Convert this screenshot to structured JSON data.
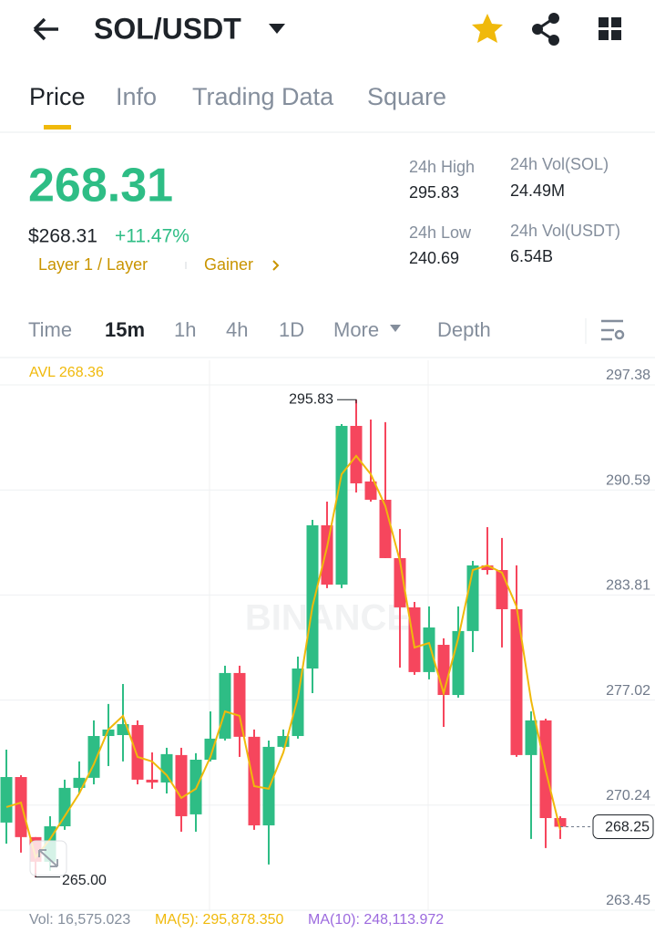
{
  "header": {
    "title": "SOL/USDT"
  },
  "tabs": [
    "Price",
    "Info",
    "Trading Data",
    "Square"
  ],
  "ticker": {
    "price": "268.31",
    "usd_price": "$268.31",
    "change": "+11.47%",
    "tags": [
      "Layer 1 / Layer",
      "Gainer"
    ],
    "stats": [
      {
        "label": "24h High",
        "value": "295.83"
      },
      {
        "label": "24h Vol(SOL)",
        "value": "24.49M"
      },
      {
        "label": "24h Low",
        "value": "240.69"
      },
      {
        "label": "24h Vol(USDT)",
        "value": "6.54B"
      }
    ]
  },
  "intervals": [
    "Time",
    "15m",
    "1h",
    "4h",
    "1D",
    "More",
    "Depth"
  ],
  "chart_data": {
    "type": "candlestick",
    "watermark": "BINANCE",
    "avl_label": "AVL 268.36",
    "up_color": "#2ebd85",
    "down_color": "#f6465d",
    "ma_color": "#f0b90b",
    "ylim": [
      262.86,
      298.38
    ],
    "yticks": [
      297.38,
      290.59,
      283.81,
      277.02,
      270.24,
      263.45
    ],
    "open": [
      268.52,
      271.46,
      267.58,
      265.99,
      268.28,
      270.76,
      271.41,
      274.11,
      274.17,
      274.82,
      271.29,
      271.11,
      272.88,
      269.05,
      272.58,
      273.94,
      278.18,
      274.06,
      268.34,
      273.41,
      274.11,
      278.47,
      287.72,
      283.89,
      294.14,
      290.55,
      289.37,
      285.6,
      282.42,
      278.24,
      280.0,
      276.76,
      280.89,
      285.13,
      284.83,
      282.3,
      272.88,
      275.12,
      268.81
    ],
    "high": [
      273.23,
      271.58,
      267.58,
      268.93,
      271.29,
      272.47,
      275.12,
      276.18,
      277.47,
      275.12,
      273.05,
      273.35,
      273.35,
      273.0,
      275.7,
      278.65,
      278.65,
      274.53,
      273.82,
      274.53,
      279.24,
      288.07,
      289.25,
      294.26,
      295.83,
      294.55,
      294.38,
      287.48,
      282.77,
      282.48,
      280.42,
      282.48,
      285.42,
      287.6,
      286.9,
      285.13,
      275.7,
      275.23,
      268.93
    ],
    "low": [
      267.16,
      266.58,
      265,
      265.4,
      268.05,
      270.4,
      270.99,
      272.17,
      272.47,
      270.99,
      270.7,
      270.4,
      267.93,
      267.93,
      272.47,
      273.82,
      272.76,
      268.05,
      265.81,
      273.35,
      273.94,
      276.88,
      283.66,
      283.66,
      289.84,
      289.25,
      285.6,
      278.53,
      278.06,
      277.77,
      274.7,
      276.59,
      279.53,
      284.54,
      279.83,
      272.76,
      267.46,
      266.87,
      267.46
    ],
    "close": [
      271.46,
      267.58,
      265.99,
      268.28,
      270.76,
      271.41,
      274.11,
      274.53,
      274.88,
      271.29,
      271.11,
      272.94,
      268.93,
      272.58,
      273.94,
      278.18,
      274.06,
      268.34,
      273.41,
      274.11,
      278.47,
      287.72,
      283.89,
      294.14,
      290.43,
      289.37,
      285.6,
      282.42,
      278.24,
      281.12,
      276.76,
      280.89,
      285.13,
      284.83,
      282.3,
      272.88,
      275.12,
      268.81,
      268.25
    ],
    "ma": [
      269.52,
      269.81,
      266.28,
      267.46,
      268.93,
      270.4,
      272.29,
      274.53,
      275.41,
      272.76,
      272.47,
      271.58,
      270.11,
      270.7,
      272.76,
      275.7,
      275.41,
      270.87,
      270.7,
      273.05,
      276.59,
      282.48,
      286.31,
      291.02,
      292.2,
      291.02,
      288.96,
      285.42,
      279.83,
      280.12,
      276.88,
      280.42,
      284.83,
      285.13,
      284.66,
      282.48,
      276.41,
      271.88,
      268.05
    ],
    "annotations": [
      {
        "value": 295.83,
        "label": "295.83"
      },
      {
        "value": 265,
        "label": "265.00"
      }
    ],
    "last_price": 268.25
  },
  "footer": {
    "vol": "Vol: 16,575.023",
    "ma5": "MA(5): 295,878.350",
    "ma10": "MA(10): 248,113.972"
  }
}
